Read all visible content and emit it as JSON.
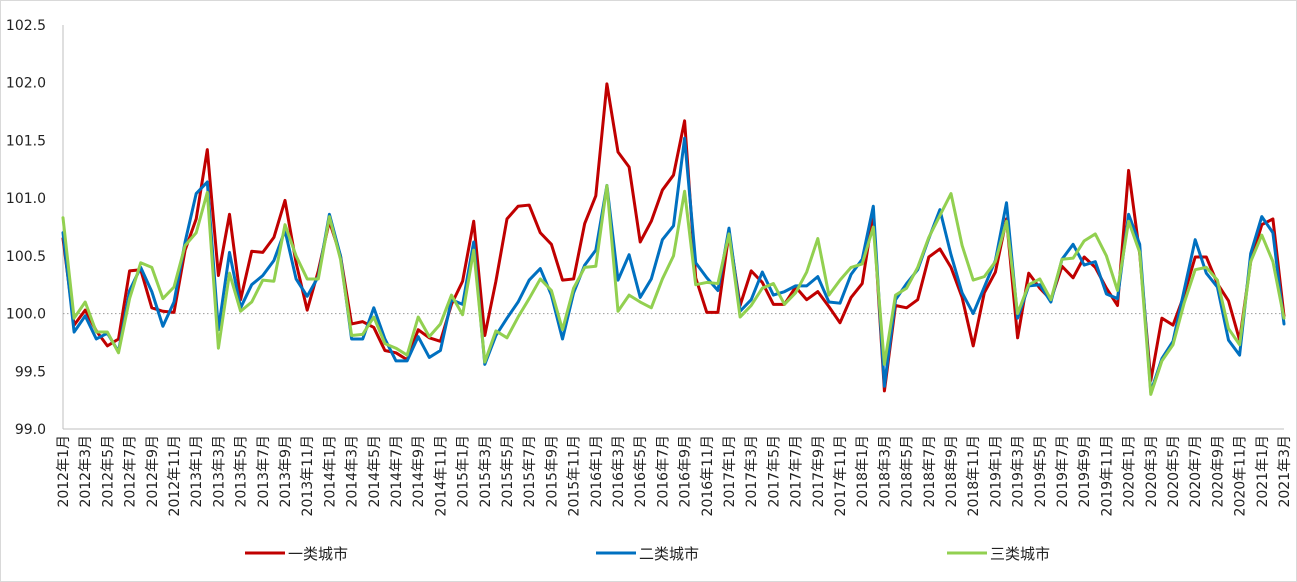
{
  "chart_data": {
    "type": "line",
    "title": "",
    "xlabel": "",
    "ylabel": "",
    "ylim": [
      99.0,
      102.5
    ],
    "yticks": [
      "102.5",
      "102.0",
      "101.5",
      "101.0",
      "100.5",
      "100.0",
      "99.5",
      "99.0"
    ],
    "reference_line": 100.0,
    "grid": false,
    "legend_position": "bottom",
    "x": [
      "2012年1月",
      "2012年2月",
      "2012年3月",
      "2012年4月",
      "2012年5月",
      "2012年6月",
      "2012年7月",
      "2012年8月",
      "2012年9月",
      "2012年10月",
      "2012年11月",
      "2012年12月",
      "2013年1月",
      "2013年2月",
      "2013年3月",
      "2013年4月",
      "2013年5月",
      "2013年6月",
      "2013年7月",
      "2013年8月",
      "2013年9月",
      "2013年10月",
      "2013年11月",
      "2013年12月",
      "2014年1月",
      "2014年2月",
      "2014年3月",
      "2014年4月",
      "2014年5月",
      "2014年6月",
      "2014年7月",
      "2014年8月",
      "2014年9月",
      "2014年10月",
      "2014年11月",
      "2014年12月",
      "2015年1月",
      "2015年2月",
      "2015年3月",
      "2015年4月",
      "2015年5月",
      "2015年6月",
      "2015年7月",
      "2015年8月",
      "2015年9月",
      "2015年10月",
      "2015年11月",
      "2015年12月",
      "2016年1月",
      "2016年2月",
      "2016年3月",
      "2016年4月",
      "2016年5月",
      "2016年6月",
      "2016年7月",
      "2016年8月",
      "2016年9月",
      "2016年10月",
      "2016年11月",
      "2016年12月",
      "2017年1月",
      "2017年2月",
      "2017年3月",
      "2017年4月",
      "2017年5月",
      "2017年6月",
      "2017年7月",
      "2017年8月",
      "2017年9月",
      "2017年10月",
      "2017年11月",
      "2017年12月",
      "2018年1月",
      "2018年2月",
      "2018年3月",
      "2018年4月",
      "2018年5月",
      "2018年6月",
      "2018年7月",
      "2018年8月",
      "2018年9月",
      "2018年10月",
      "2018年11月",
      "2018年12月",
      "2019年1月",
      "2019年2月",
      "2019年3月",
      "2019年4月",
      "2019年5月",
      "2019年6月",
      "2019年7月",
      "2019年8月",
      "2019年9月",
      "2019年10月",
      "2019年11月",
      "2019年12月",
      "2020年1月",
      "2020年2月",
      "2020年3月",
      "2020年4月",
      "2020年5月",
      "2020年6月",
      "2020年7月",
      "2020年8月",
      "2020年9月",
      "2020年10月",
      "2020年11月",
      "2020年12月",
      "2021年1月",
      "2021年2月",
      "2021年3月"
    ],
    "tick_labels": [
      "2012年1月",
      "2012年3月",
      "2012年5月",
      "2012年7月",
      "2012年9月",
      "2012年11月",
      "2013年1月",
      "2013年3月",
      "2013年5月",
      "2013年7月",
      "2013年9月",
      "2013年11月",
      "2014年1月",
      "2014年3月",
      "2014年5月",
      "2014年7月",
      "2014年9月",
      "2014年11月",
      "2015年1月",
      "2015年3月",
      "2015年5月",
      "2015年7月",
      "2015年9月",
      "2015年11月",
      "2016年1月",
      "2016年3月",
      "2016年5月",
      "2016年7月",
      "2016年9月",
      "2016年11月",
      "2017年1月",
      "2017年3月",
      "2017年5月",
      "2017年7月",
      "2017年9月",
      "2017年11月",
      "2018年1月",
      "2018年3月",
      "2018年5月",
      "2018年7月",
      "2018年9月",
      "2018年11月",
      "2019年1月",
      "2019年3月",
      "2019年5月",
      "2019年7月",
      "2019年9月",
      "2019年11月",
      "2020年1月",
      "2020年3月",
      "2020年5月",
      "2020年7月",
      "2020年9月",
      "2020年11月",
      "2021年1月",
      "2021年3月"
    ],
    "series": [
      {
        "name": "一类城市",
        "color": "#C00000",
        "values": [
          100.65,
          99.9,
          100.03,
          99.85,
          99.72,
          99.78,
          100.37,
          100.38,
          100.05,
          100.02,
          100.01,
          100.55,
          100.82,
          101.42,
          100.33,
          100.86,
          100.12,
          100.54,
          100.53,
          100.66,
          100.98,
          100.44,
          100.03,
          100.37,
          100.8,
          100.5,
          99.91,
          99.93,
          99.88,
          99.68,
          99.66,
          99.6,
          99.86,
          99.79,
          99.76,
          100.08,
          100.28,
          100.8,
          99.81,
          100.28,
          100.82,
          100.93,
          100.94,
          100.7,
          100.6,
          100.29,
          100.3,
          100.78,
          101.02,
          101.99,
          101.4,
          101.27,
          100.62,
          100.8,
          101.07,
          101.2,
          101.67,
          100.31,
          100.01,
          100.01,
          100.7,
          100.07,
          100.37,
          100.27,
          100.08,
          100.08,
          100.23,
          100.12,
          100.19,
          100.06,
          99.92,
          100.14,
          100.26,
          100.87,
          99.33,
          100.07,
          100.05,
          100.12,
          100.49,
          100.56,
          100.4,
          100.14,
          99.72,
          100.18,
          100.36,
          100.82,
          99.79,
          100.35,
          100.22,
          100.12,
          100.41,
          100.31,
          100.49,
          100.4,
          100.22,
          100.07,
          101.24,
          100.52,
          99.42,
          99.96,
          99.9,
          100.16,
          100.49,
          100.49,
          100.26,
          100.11,
          99.77,
          100.45,
          100.77,
          100.82,
          99.98
        ]
      },
      {
        "name": "二类城市",
        "color": "#0070C0",
        "values": [
          100.7,
          99.84,
          99.98,
          99.78,
          99.83,
          99.67,
          100.2,
          100.4,
          100.19,
          99.89,
          100.1,
          100.62,
          101.04,
          101.14,
          99.86,
          100.53,
          100.05,
          100.25,
          100.33,
          100.46,
          100.72,
          100.3,
          100.15,
          100.32,
          100.86,
          100.5,
          99.78,
          99.78,
          100.05,
          99.78,
          99.59,
          99.59,
          99.8,
          99.62,
          99.68,
          100.12,
          100.08,
          100.62,
          99.56,
          99.81,
          99.96,
          100.1,
          100.29,
          100.39,
          100.16,
          99.78,
          100.18,
          100.42,
          100.55,
          101.11,
          100.29,
          100.51,
          100.14,
          100.3,
          100.64,
          100.76,
          101.52,
          100.44,
          100.31,
          100.2,
          100.74,
          100.02,
          100.12,
          100.36,
          100.16,
          100.19,
          100.24,
          100.24,
          100.32,
          100.1,
          100.09,
          100.34,
          100.47,
          100.93,
          99.37,
          100.12,
          100.26,
          100.38,
          100.65,
          100.9,
          100.51,
          100.18,
          100.0,
          100.23,
          100.46,
          100.96,
          99.96,
          100.24,
          100.25,
          100.1,
          100.47,
          100.6,
          100.42,
          100.45,
          100.17,
          100.13,
          100.86,
          100.6,
          99.32,
          99.61,
          99.76,
          100.2,
          100.64,
          100.35,
          100.23,
          99.77,
          99.64,
          100.52,
          100.84,
          100.7,
          99.91
        ]
      },
      {
        "name": "三类城市",
        "color": "#92D050",
        "values": [
          100.83,
          99.96,
          100.1,
          99.84,
          99.84,
          99.66,
          100.13,
          100.44,
          100.4,
          100.13,
          100.23,
          100.59,
          100.7,
          101.05,
          99.7,
          100.35,
          100.02,
          100.1,
          100.29,
          100.28,
          100.77,
          100.5,
          100.3,
          100.3,
          100.84,
          100.47,
          99.81,
          99.82,
          99.97,
          99.74,
          99.7,
          99.64,
          99.97,
          99.8,
          99.91,
          100.16,
          99.99,
          100.55,
          99.58,
          99.85,
          99.79,
          99.97,
          100.13,
          100.3,
          100.2,
          99.86,
          100.22,
          100.4,
          100.41,
          101.11,
          100.02,
          100.16,
          100.1,
          100.05,
          100.3,
          100.5,
          101.06,
          100.25,
          100.27,
          100.26,
          100.69,
          99.97,
          100.07,
          100.22,
          100.26,
          100.08,
          100.18,
          100.36,
          100.65,
          100.16,
          100.29,
          100.4,
          100.43,
          100.75,
          99.56,
          100.16,
          100.22,
          100.4,
          100.66,
          100.85,
          101.04,
          100.59,
          100.29,
          100.32,
          100.45,
          100.8,
          100.0,
          100.25,
          100.3,
          100.12,
          100.47,
          100.48,
          100.63,
          100.69,
          100.5,
          100.2,
          100.8,
          100.53,
          99.3,
          99.59,
          99.73,
          100.09,
          100.38,
          100.4,
          100.29,
          99.87,
          99.73,
          100.45,
          100.68,
          100.45,
          99.96
        ]
      }
    ]
  }
}
